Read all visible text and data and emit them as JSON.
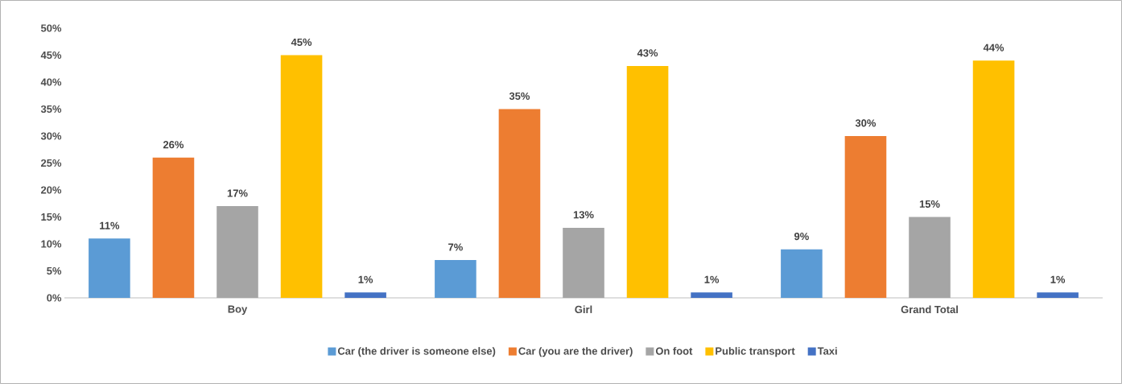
{
  "chart_data": {
    "type": "bar",
    "categories": [
      "Boy",
      "Girl",
      "Grand Total"
    ],
    "series": [
      {
        "name": "Car (the driver is someone else)",
        "color": "#5b9bd5",
        "values": [
          11,
          7,
          9
        ],
        "value_labels": [
          "11%",
          "7%",
          "9%"
        ]
      },
      {
        "name": "Car (you are the driver)",
        "color": "#ed7d31",
        "values": [
          26,
          35,
          30
        ],
        "value_labels": [
          "26%",
          "35%",
          "30%"
        ]
      },
      {
        "name": "On foot",
        "color": "#a5a5a5",
        "values": [
          17,
          13,
          15
        ],
        "value_labels": [
          "17%",
          "13%",
          "15%"
        ]
      },
      {
        "name": "Public transport",
        "color": "#ffc000",
        "values": [
          45,
          43,
          44
        ],
        "value_labels": [
          "45%",
          "43%",
          "44%"
        ]
      },
      {
        "name": "Taxi",
        "color": "#4472c4",
        "values": [
          1,
          1,
          1
        ],
        "value_labels": [
          "1%",
          "1%",
          "1%"
        ]
      }
    ],
    "ylim": [
      0,
      50
    ],
    "yticks": [
      {
        "value": 0,
        "label": "0%"
      },
      {
        "value": 5,
        "label": "5%"
      },
      {
        "value": 10,
        "label": "10%"
      },
      {
        "value": 15,
        "label": "15%"
      },
      {
        "value": 20,
        "label": "20%"
      },
      {
        "value": 25,
        "label": "25%"
      },
      {
        "value": 30,
        "label": "30%"
      },
      {
        "value": 35,
        "label": "35%"
      },
      {
        "value": 40,
        "label": "40%"
      },
      {
        "value": 45,
        "label": "45%"
      },
      {
        "value": 50,
        "label": "50%"
      }
    ],
    "grid": false,
    "legend": "bottom"
  }
}
